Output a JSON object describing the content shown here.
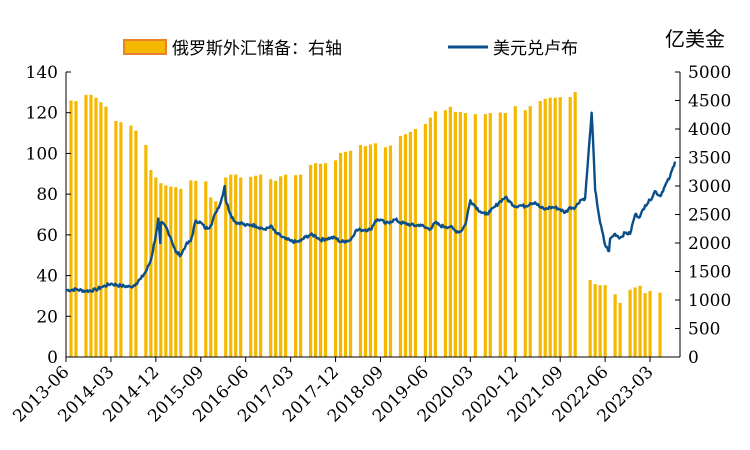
{
  "chart_data": {
    "type": "bar+line",
    "unit_right": "亿美金",
    "legend": [
      {
        "name": "俄罗斯外汇储备：右轴",
        "color": "#F5B800",
        "edge": "#E8822A",
        "kind": "bar"
      },
      {
        "name": "美元兑卢布",
        "color": "#0B4F8A",
        "kind": "line"
      }
    ],
    "left_axis": {
      "min": 0,
      "max": 140,
      "ticks": [
        0,
        20,
        40,
        60,
        80,
        100,
        120,
        140
      ]
    },
    "right_axis": {
      "min": 0,
      "max": 5000,
      "ticks": [
        0,
        500,
        1000,
        1500,
        2000,
        2500,
        3000,
        3500,
        4000,
        4500,
        5000
      ]
    },
    "x_range": [
      "2013-06",
      "2023-09"
    ],
    "x_tick_labels": [
      "2013-06",
      "2014-03",
      "2014-12",
      "2015-09",
      "2016-06",
      "2017-03",
      "2017-12",
      "2018-09",
      "2019-06",
      "2020-03",
      "2020-12",
      "2021-09",
      "2022-06",
      "2023-03"
    ],
    "reserves_series": {
      "name": "俄罗斯外汇储备：右轴",
      "x": [
        "2013-07",
        "2013-08",
        "2013-10",
        "2013-11",
        "2013-12",
        "2014-01",
        "2014-02",
        "2014-04",
        "2014-05",
        "2014-07",
        "2014-08",
        "2014-10",
        "2014-11",
        "2014-12",
        "2015-01",
        "2015-02",
        "2015-03",
        "2015-04",
        "2015-05",
        "2015-07",
        "2015-08",
        "2015-10",
        "2015-11",
        "2015-12",
        "2016-02",
        "2016-03",
        "2016-04",
        "2016-05",
        "2016-07",
        "2016-08",
        "2016-09",
        "2016-11",
        "2016-12",
        "2017-01",
        "2017-02",
        "2017-04",
        "2017-05",
        "2017-07",
        "2017-08",
        "2017-09",
        "2017-10",
        "2017-12",
        "2018-01",
        "2018-02",
        "2018-03",
        "2018-05",
        "2018-06",
        "2018-07",
        "2018-08",
        "2018-10",
        "2018-11",
        "2019-01",
        "2019-02",
        "2019-03",
        "2019-04",
        "2019-06",
        "2019-07",
        "2019-08",
        "2019-10",
        "2019-11",
        "2019-12",
        "2020-01",
        "2020-02",
        "2020-04",
        "2020-06",
        "2020-07",
        "2020-09",
        "2020-10",
        "2020-12",
        "2021-02",
        "2021-03",
        "2021-05",
        "2021-06",
        "2021-07",
        "2021-08",
        "2021-09",
        "2021-11",
        "2021-12",
        "2022-03",
        "2022-04",
        "2022-05",
        "2022-06",
        "2022-08",
        "2022-09",
        "2022-11",
        "2022-12",
        "2023-01",
        "2023-02",
        "2023-03",
        "2023-05"
      ],
      "values": [
        4500,
        4490,
        4600,
        4600,
        4550,
        4470,
        4390,
        4140,
        4120,
        4060,
        3970,
        3720,
        3280,
        3150,
        3050,
        3010,
        2990,
        2980,
        2950,
        3100,
        3090,
        3080,
        2800,
        2730,
        3150,
        3200,
        3200,
        3150,
        3160,
        3180,
        3200,
        3120,
        3090,
        3170,
        3200,
        3190,
        3200,
        3370,
        3400,
        3390,
        3400,
        3450,
        3580,
        3600,
        3620,
        3720,
        3700,
        3730,
        3750,
        3680,
        3710,
        3880,
        3910,
        3950,
        4000,
        4090,
        4200,
        4310,
        4330,
        4390,
        4300,
        4300,
        4280,
        4260,
        4260,
        4280,
        4290,
        4280,
        4400,
        4330,
        4400,
        4490,
        4530,
        4550,
        4550,
        4560,
        4560,
        4650,
        1350,
        1280,
        1260,
        1260,
        1100,
        950,
        1180,
        1220,
        1250,
        1120,
        1160,
        1130
      ]
    },
    "rub_series": {
      "name": "美元兑卢布",
      "points": [
        [
          "2013-06",
          32.8
        ],
        [
          "2013-08",
          33.2
        ],
        [
          "2013-10",
          32.4
        ],
        [
          "2013-12",
          33.0
        ],
        [
          "2014-01",
          34.2
        ],
        [
          "2014-03",
          36.0
        ],
        [
          "2014-05",
          35.0
        ],
        [
          "2014-07",
          34.4
        ],
        [
          "2014-08",
          36.0
        ],
        [
          "2014-09",
          38.5
        ],
        [
          "2014-10",
          42.0
        ],
        [
          "2014-11",
          47.5
        ],
        [
          "2014-12",
          60.0
        ],
        [
          "2014-12-16",
          68.0
        ],
        [
          "2014-12-28",
          56.0
        ],
        [
          "2015-01",
          66.0
        ],
        [
          "2015-02",
          64.0
        ],
        [
          "2015-03",
          58.5
        ],
        [
          "2015-04",
          51.5
        ],
        [
          "2015-05",
          50.0
        ],
        [
          "2015-06",
          55.0
        ],
        [
          "2015-07",
          57.0
        ],
        [
          "2015-08",
          67.0
        ],
        [
          "2015-09",
          66.0
        ],
        [
          "2015-10",
          63.0
        ],
        [
          "2015-11",
          64.5
        ],
        [
          "2015-12",
          71.0
        ],
        [
          "2016-01",
          76.0
        ],
        [
          "2016-01-25",
          84.0
        ],
        [
          "2016-02",
          77.0
        ],
        [
          "2016-03",
          70.0
        ],
        [
          "2016-04",
          66.0
        ],
        [
          "2016-05",
          66.0
        ],
        [
          "2016-06",
          64.5
        ],
        [
          "2016-07",
          65.0
        ],
        [
          "2016-08",
          64.5
        ],
        [
          "2016-09",
          63.5
        ],
        [
          "2016-10",
          62.5
        ],
        [
          "2016-11",
          64.5
        ],
        [
          "2016-12",
          61.0
        ],
        [
          "2017-01",
          59.5
        ],
        [
          "2017-02",
          58.0
        ],
        [
          "2017-03",
          57.0
        ],
        [
          "2017-04",
          56.5
        ],
        [
          "2017-05",
          57.0
        ],
        [
          "2017-06",
          59.0
        ],
        [
          "2017-07",
          60.0
        ],
        [
          "2017-08",
          59.5
        ],
        [
          "2017-09",
          57.5
        ],
        [
          "2017-10",
          58.0
        ],
        [
          "2017-11",
          58.5
        ],
        [
          "2017-12",
          58.5
        ],
        [
          "2018-01",
          56.5
        ],
        [
          "2018-02",
          57.0
        ],
        [
          "2018-03",
          57.5
        ],
        [
          "2018-04",
          62.0
        ],
        [
          "2018-05",
          62.5
        ],
        [
          "2018-06",
          62.5
        ],
        [
          "2018-07",
          62.5
        ],
        [
          "2018-08",
          67.0
        ],
        [
          "2018-09",
          67.5
        ],
        [
          "2018-10",
          65.5
        ],
        [
          "2018-11",
          66.5
        ],
        [
          "2018-12",
          67.5
        ],
        [
          "2019-01",
          66.0
        ],
        [
          "2019-02",
          65.5
        ],
        [
          "2019-03",
          65.0
        ],
        [
          "2019-04",
          64.5
        ],
        [
          "2019-05",
          65.0
        ],
        [
          "2019-06",
          63.5
        ],
        [
          "2019-07",
          63.0
        ],
        [
          "2019-08",
          66.0
        ],
        [
          "2019-09",
          64.5
        ],
        [
          "2019-10",
          64.0
        ],
        [
          "2019-11",
          64.0
        ],
        [
          "2019-12",
          62.0
        ],
        [
          "2020-01",
          61.5
        ],
        [
          "2020-02",
          65.0
        ],
        [
          "2020-03",
          77.0
        ],
        [
          "2020-04",
          74.0
        ],
        [
          "2020-05",
          71.5
        ],
        [
          "2020-06",
          70.0
        ],
        [
          "2020-07",
          71.5
        ],
        [
          "2020-08",
          74.0
        ],
        [
          "2020-09",
          76.5
        ],
        [
          "2020-10",
          78.5
        ],
        [
          "2020-11",
          76.0
        ],
        [
          "2020-12",
          74.0
        ],
        [
          "2021-01",
          74.5
        ],
        [
          "2021-02",
          74.0
        ],
        [
          "2021-03",
          75.5
        ],
        [
          "2021-04",
          76.0
        ],
        [
          "2021-05",
          73.5
        ],
        [
          "2021-06",
          72.5
        ],
        [
          "2021-07",
          73.5
        ],
        [
          "2021-08",
          73.5
        ],
        [
          "2021-09",
          72.5
        ],
        [
          "2021-10",
          71.0
        ],
        [
          "2021-11",
          73.5
        ],
        [
          "2021-12",
          73.5
        ],
        [
          "2022-01",
          77.0
        ],
        [
          "2022-02",
          78.0
        ],
        [
          "2022-03-10",
          120.0
        ],
        [
          "2022-03-20",
          104.0
        ],
        [
          "2022-04",
          82.0
        ],
        [
          "2022-05",
          66.0
        ],
        [
          "2022-06",
          55.0
        ],
        [
          "2022-06-25",
          52.0
        ],
        [
          "2022-07",
          58.0
        ],
        [
          "2022-08",
          60.5
        ],
        [
          "2022-09",
          58.5
        ],
        [
          "2022-10",
          61.0
        ],
        [
          "2022-11",
          60.5
        ],
        [
          "2022-12",
          70.0
        ],
        [
          "2023-01",
          69.0
        ],
        [
          "2023-02",
          74.5
        ],
        [
          "2023-03",
          77.0
        ],
        [
          "2023-04",
          81.5
        ],
        [
          "2023-05",
          79.0
        ],
        [
          "2023-06",
          84.0
        ],
        [
          "2023-07",
          88.5
        ],
        [
          "2023-08",
          96.0
        ]
      ]
    }
  }
}
